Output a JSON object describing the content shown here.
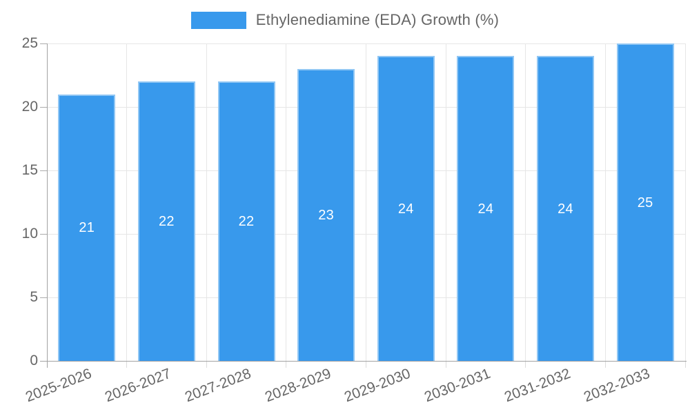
{
  "chart_data": {
    "type": "bar",
    "title": "",
    "legend": {
      "label": "Ethylenediamine (EDA) Growth (%)",
      "position": "top"
    },
    "categories": [
      "2025-2026",
      "2026-2027",
      "2027-2028",
      "2028-2029",
      "2029-2030",
      "2030-2031",
      "2031-2032",
      "2032-2033"
    ],
    "series": [
      {
        "name": "Ethylenediamine (EDA) Growth (%)",
        "values": [
          21,
          22,
          22,
          23,
          24,
          24,
          24,
          25
        ]
      }
    ],
    "data_labels_shown": true,
    "ylim": [
      0,
      25
    ],
    "yticks": [
      0,
      5,
      10,
      15,
      20,
      25
    ],
    "grid": true,
    "x_label_rotation_deg": -21,
    "colors": {
      "bar_fill": "#3899EC",
      "bar_border": "rgba(255,255,255,0.45)",
      "grid_line": "#E6E6E6",
      "axis_line": "#A1A1A1",
      "tick_text": "#666666",
      "legend_text": "#666666",
      "value_label_text": "#FFFFFF"
    }
  }
}
